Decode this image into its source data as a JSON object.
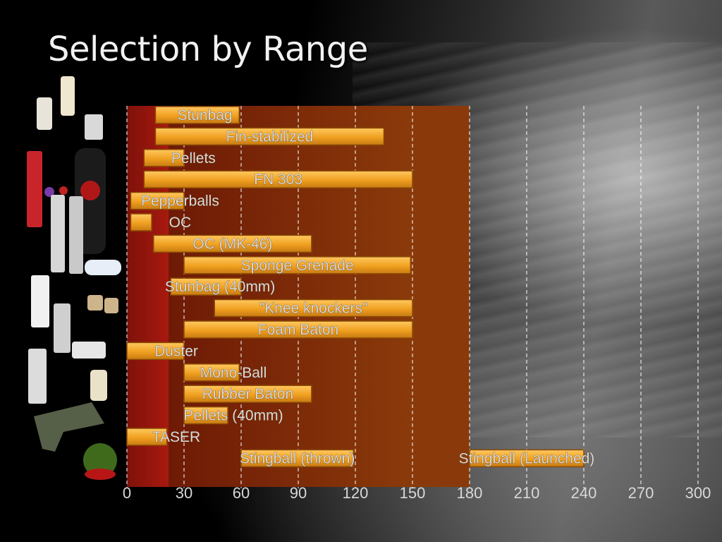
{
  "title": "Selection by Range",
  "colors": {
    "bar_fill": "#f0a020",
    "bar_edge": "#8a4a05",
    "zone_dark_red": "#a8190f",
    "zone_brown": "#7a2c08",
    "zone_brown_light": "#8a3a0a",
    "gridline": "#ffffff"
  },
  "chart_data": {
    "type": "bar",
    "orientation": "horizontal",
    "xlim": [
      0,
      300
    ],
    "xticks": [
      "0",
      "30",
      "60",
      "90",
      "120",
      "150",
      "180",
      "210",
      "240",
      "270",
      "300"
    ],
    "grid": true,
    "highlight_zones": [
      {
        "start": 0,
        "end": 22
      },
      {
        "start": 22,
        "end": 150
      },
      {
        "start": 150,
        "end": 180
      }
    ],
    "series": [
      {
        "label": "Stunbag",
        "start": 15,
        "end": 59
      },
      {
        "label": "Fin-stabilized",
        "start": 15,
        "end": 135
      },
      {
        "label": "Pellets",
        "start": 9,
        "end": 30
      },
      {
        "label": "FN 303",
        "start": 9,
        "end": 150
      },
      {
        "label": "Pepperballs",
        "start": 2,
        "end": 30
      },
      {
        "label": "OC",
        "start": 2,
        "end": 13
      },
      {
        "label": "OC (MK-46)",
        "start": 14,
        "end": 97
      },
      {
        "label": "Sponge Grenade",
        "start": 30,
        "end": 149
      },
      {
        "label": "Stunbag (40mm)",
        "start": 23,
        "end": 60
      },
      {
        "label": "\"Knee knockers\"",
        "start": 46,
        "end": 150
      },
      {
        "label": "Foam Baton",
        "start": 30,
        "end": 150
      },
      {
        "label": "Duster",
        "start": 0,
        "end": 30
      },
      {
        "label": "Mono-Ball",
        "start": 30,
        "end": 59
      },
      {
        "label": "Rubber Baton",
        "start": 30,
        "end": 97
      },
      {
        "label": "Pellets (40mm)",
        "start": 30,
        "end": 53
      },
      {
        "label": "TASER",
        "start": 0,
        "end": 21
      },
      {
        "label": "Stingball (thrown)",
        "start": 60,
        "end": 119
      },
      {
        "label": "Stingball (Launched)",
        "start": 180,
        "end": 240
      }
    ]
  }
}
